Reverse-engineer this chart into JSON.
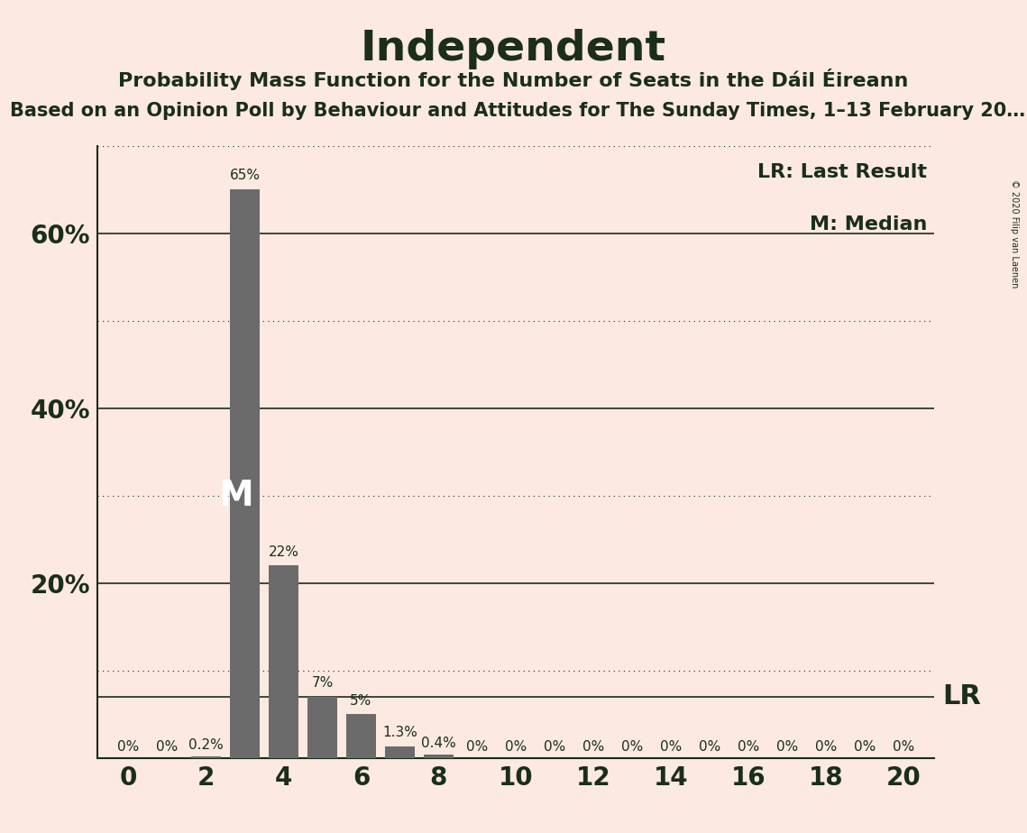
{
  "title": "Independent",
  "subtitle": "Probability Mass Function for the Number of Seats in the Dáil Éireann",
  "source_line": "Based on an Opinion Poll by Behaviour and Attitudes for The Sunday Times, 1–13 February 20…",
  "copyright": "© 2020 Filip van Laenen",
  "background_color": "#fce9e1",
  "bar_color": "#6b6b6b",
  "seats": [
    0,
    1,
    2,
    3,
    4,
    5,
    6,
    7,
    8,
    9,
    10,
    11,
    12,
    13,
    14,
    15,
    16,
    17,
    18,
    19,
    20
  ],
  "probabilities": [
    0.0,
    0.0,
    0.2,
    65.0,
    22.0,
    7.0,
    5.0,
    1.3,
    0.4,
    0.0,
    0.0,
    0.0,
    0.0,
    0.0,
    0.0,
    0.0,
    0.0,
    0.0,
    0.0,
    0.0,
    0.0
  ],
  "median_seat": 3,
  "lr_value": 7.0,
  "ylim": [
    0,
    70
  ],
  "yticks": [
    20,
    40,
    60
  ],
  "ytick_labels": [
    "20%",
    "40%",
    "60%"
  ],
  "dotted_gridlines": [
    10,
    30,
    50,
    70
  ],
  "solid_gridlines": [
    20,
    40,
    60
  ],
  "xtick_positions": [
    0,
    2,
    4,
    6,
    8,
    10,
    12,
    14,
    16,
    18,
    20
  ],
  "title_fontsize": 34,
  "subtitle_fontsize": 16,
  "source_fontsize": 15,
  "text_color": "#1a2e1a",
  "bar_label_fontsize": 11,
  "median_label_fontsize": 28,
  "lr_fontsize": 22,
  "legend_fontsize": 16,
  "tick_fontsize": 20
}
